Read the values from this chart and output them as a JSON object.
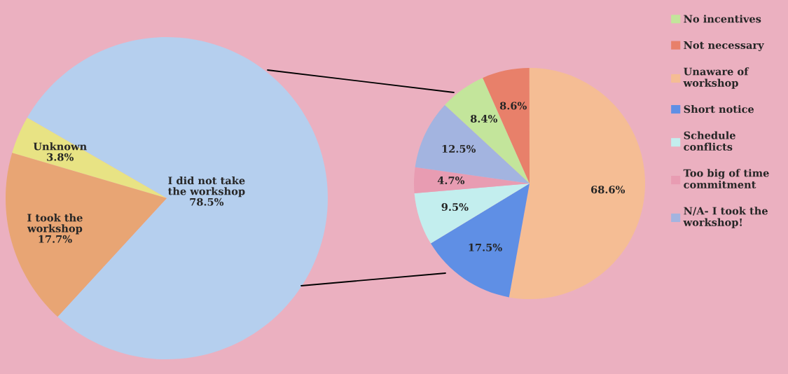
{
  "chart_data": [
    {
      "type": "pie",
      "categories": [
        "I did not take the workshop",
        "Unknown",
        "I took the workshop"
      ],
      "values": [
        78.5,
        3.8,
        17.7
      ],
      "colors": [
        "#b5cfee",
        "#e8e384",
        "#e8a574"
      ],
      "value_labels": [
        "78.5%",
        "3.8%",
        "17.7%"
      ]
    },
    {
      "type": "pie",
      "categories": [
        "No incentives",
        "Not necessary",
        "Unaware of workshop",
        "Short notice",
        "Schedule conflicts",
        "Too big of time commitment",
        "N/A- I took the workshop!"
      ],
      "values": [
        8.4,
        8.6,
        68.6,
        17.5,
        9.5,
        4.7,
        12.5
      ],
      "colors": [
        "#c3e59b",
        "#e8806a",
        "#f5bd94",
        "#5f8fe5",
        "#c3eeee",
        "#e89cb2",
        "#a3b4e0"
      ],
      "value_labels": [
        "8.4%",
        "8.6%",
        "68.6%",
        "17.5%",
        "9.5%",
        "4.7%",
        "12.5%"
      ],
      "legend": "right"
    }
  ]
}
